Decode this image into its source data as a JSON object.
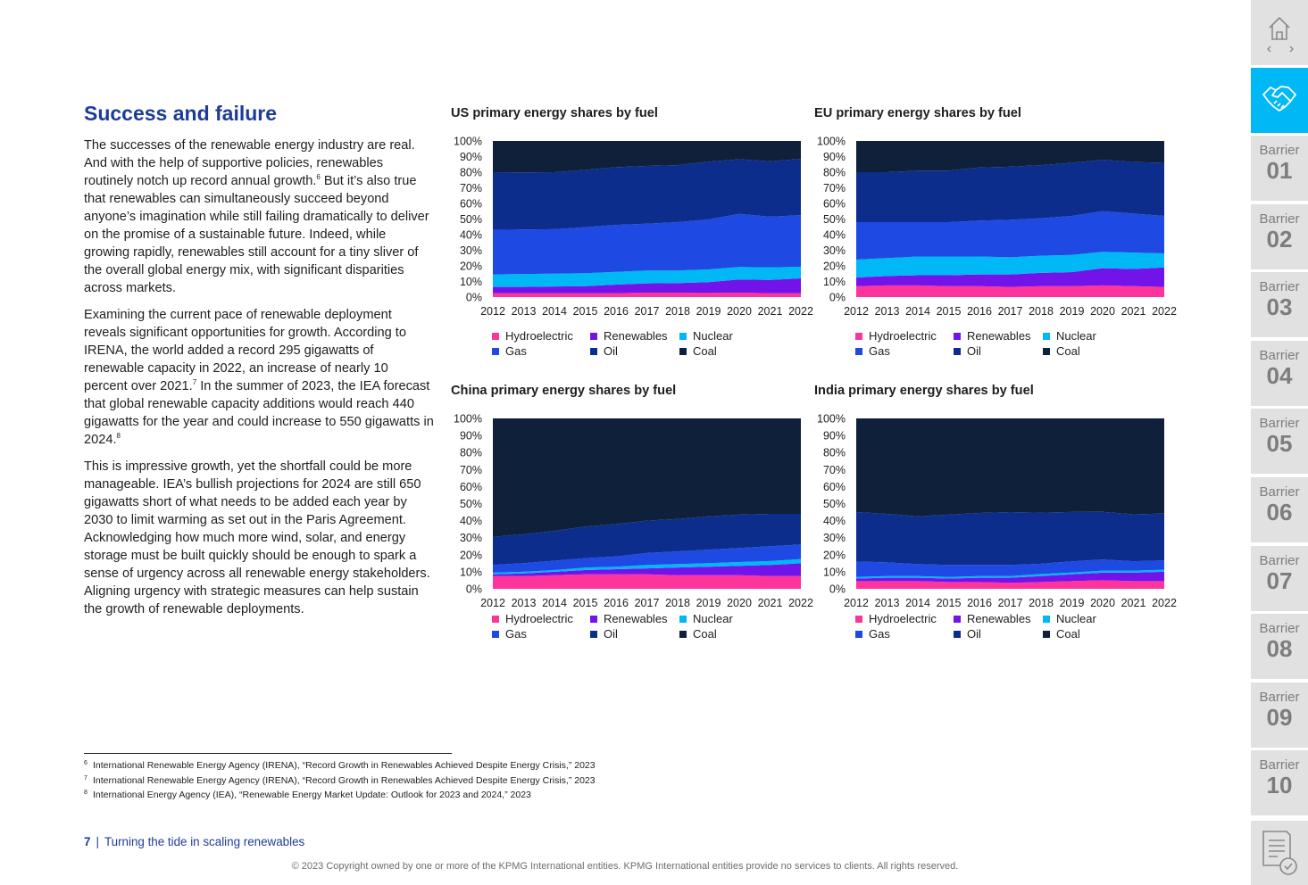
{
  "section": {
    "title": "Success and failure",
    "p1_text": "The successes of the renewable energy industry are real. And with the help of supportive policies, renewables routinely notch up record annual growth.",
    "p1_sup": "6",
    "p1_text2": " But it’s also true that renewables can simultaneously succeed beyond anyone’s imagination while still failing dramatically to deliver on the promise of a sustainable future. Indeed, while growing rapidly, renewables still account for a tiny sliver of the overall global energy mix, with significant disparities across markets.",
    "p2_text": "Examining the current pace of renewable deployment reveals significant opportunities for growth. According to IRENA, the world added a record 295 gigawatts of renewable capacity in 2022, an increase of nearly 10 percent over 2021.",
    "p2_sup1": "7",
    "p2_text2": " In the summer of 2023, the IEA forecast that global renewable capacity additions would reach 440 gigawatts for the year and could increase to 550 gigawatts in 2024.",
    "p2_sup2": "8",
    "p3_text": "This is impressive growth, yet the shortfall could be more manageable. IEA’s bullish projections for 2024 are still 650 gigawatts short of what needs to be added each year by 2030 to limit warming as set out in the Paris Agreement. Acknowledging how much more wind, solar, and energy storage must be built quickly should be enough to spark a sense of urgency across all renewable energy stakeholders. Aligning urgency with strategic measures can help sustain the growth of renewable deployments."
  },
  "colors": {
    "Hydroelectric": "#fd349c",
    "Renewables": "#7213ea",
    "Nuclear": "#00b8f5",
    "Gas": "#1e49e2",
    "Oil": "#0c2d8c",
    "Coal": "#0f213a"
  },
  "legend": [
    "Hydroelectric",
    "Renewables",
    "Nuclear",
    "Gas",
    "Oil",
    "Coal"
  ],
  "chart_data": [
    {
      "type": "area",
      "title": "US primary energy shares by fuel",
      "x": [
        2012,
        2013,
        2014,
        2015,
        2016,
        2017,
        2018,
        2019,
        2020,
        2021,
        2022
      ],
      "ylim": [
        0,
        100
      ],
      "yticks": [
        "0%",
        "10%",
        "20%",
        "30%",
        "40%",
        "50%",
        "60%",
        "70%",
        "80%",
        "90%",
        "100%"
      ],
      "stacked": true,
      "series": [
        {
          "name": "Hydroelectric",
          "values": [
            2.5,
            2.5,
            2.5,
            2.5,
            2.5,
            2.8,
            2.7,
            2.6,
            2.8,
            2.5,
            2.5
          ]
        },
        {
          "name": "Renewables",
          "values": [
            4.0,
            4.0,
            4.3,
            4.5,
            5.5,
            6.0,
            6.3,
            7.0,
            8.5,
            8.5,
            9.5
          ]
        },
        {
          "name": "Nuclear",
          "values": [
            8.0,
            8.3,
            8.2,
            8.3,
            8.2,
            8.2,
            8.0,
            8.1,
            8.0,
            8.0,
            7.5
          ]
        },
        {
          "name": "Gas",
          "values": [
            28.5,
            28.5,
            28.5,
            29.5,
            30.0,
            30.0,
            31.0,
            32.0,
            34.0,
            32.5,
            33.0
          ]
        },
        {
          "name": "Oil",
          "values": [
            37.0,
            36.5,
            36.5,
            36.7,
            37.0,
            37.0,
            36.5,
            37.0,
            35.0,
            35.5,
            36.0
          ]
        },
        {
          "name": "Coal",
          "values": [
            20.0,
            20.2,
            20.0,
            18.5,
            16.8,
            16.0,
            15.5,
            13.3,
            11.7,
            13.0,
            11.5
          ]
        }
      ]
    },
    {
      "type": "area",
      "title": "EU primary energy shares by fuel",
      "x": [
        2012,
        2013,
        2014,
        2015,
        2016,
        2017,
        2018,
        2019,
        2020,
        2021,
        2022
      ],
      "ylim": [
        0,
        100
      ],
      "yticks": [
        "0%",
        "10%",
        "20%",
        "30%",
        "40%",
        "50%",
        "60%",
        "70%",
        "80%",
        "90%",
        "100%"
      ],
      "stacked": true,
      "series": [
        {
          "name": "Hydroelectric",
          "values": [
            7.0,
            7.5,
            7.5,
            7.0,
            7.0,
            6.5,
            7.0,
            7.0,
            7.5,
            7.0,
            6.5
          ]
        },
        {
          "name": "Renewables",
          "values": [
            5.5,
            6.0,
            6.5,
            7.0,
            7.5,
            8.0,
            8.5,
            9.0,
            11.0,
            11.0,
            12.5
          ]
        },
        {
          "name": "Nuclear",
          "values": [
            11.5,
            11.5,
            12.0,
            12.0,
            11.5,
            11.0,
            11.0,
            11.0,
            10.5,
            10.5,
            9.0
          ]
        },
        {
          "name": "Gas",
          "values": [
            24.0,
            23.0,
            22.0,
            22.0,
            23.0,
            24.0,
            24.0,
            25.0,
            26.0,
            25.0,
            24.0
          ]
        },
        {
          "name": "Oil",
          "values": [
            32.0,
            32.0,
            33.0,
            33.0,
            34.0,
            34.0,
            34.0,
            34.0,
            33.0,
            33.0,
            34.0
          ]
        },
        {
          "name": "Coal",
          "values": [
            20.0,
            20.0,
            19.0,
            19.0,
            17.0,
            16.5,
            15.5,
            14.0,
            12.0,
            13.5,
            14.0
          ]
        }
      ]
    },
    {
      "type": "area",
      "title": "China primary energy shares by fuel",
      "x": [
        2012,
        2013,
        2014,
        2015,
        2016,
        2017,
        2018,
        2019,
        2020,
        2021,
        2022
      ],
      "ylim": [
        0,
        100
      ],
      "yticks": [
        "0%",
        "10%",
        "20%",
        "30%",
        "40%",
        "50%",
        "60%",
        "70%",
        "80%",
        "90%",
        "100%"
      ],
      "stacked": true,
      "series": [
        {
          "name": "Hydroelectric",
          "values": [
            7.5,
            7.5,
            8.0,
            8.5,
            8.5,
            8.5,
            8.0,
            8.0,
            8.0,
            7.5,
            7.5
          ]
        },
        {
          "name": "Renewables",
          "values": [
            1.0,
            1.5,
            2.0,
            2.5,
            3.0,
            3.5,
            4.5,
            5.0,
            5.5,
            6.5,
            7.5
          ]
        },
        {
          "name": "Nuclear",
          "values": [
            1.0,
            1.0,
            1.0,
            1.5,
            1.5,
            2.0,
            2.0,
            2.0,
            2.2,
            2.3,
            2.5
          ]
        },
        {
          "name": "Gas",
          "values": [
            4.5,
            5.0,
            5.5,
            5.5,
            6.0,
            7.0,
            7.5,
            8.0,
            8.3,
            8.7,
            8.5
          ]
        },
        {
          "name": "Oil",
          "values": [
            16.5,
            17.0,
            17.5,
            18.5,
            19.0,
            19.0,
            19.0,
            19.5,
            19.5,
            19.0,
            18.0
          ]
        },
        {
          "name": "Coal",
          "values": [
            69.5,
            68.0,
            66.0,
            63.5,
            62.0,
            60.0,
            59.0,
            57.5,
            56.5,
            56.0,
            56.0
          ]
        }
      ]
    },
    {
      "type": "area",
      "title": "India primary energy shares by fuel",
      "x": [
        2012,
        2013,
        2014,
        2015,
        2016,
        2017,
        2018,
        2019,
        2020,
        2021,
        2022
      ],
      "ylim": [
        0,
        100
      ],
      "yticks": [
        "0%",
        "10%",
        "20%",
        "30%",
        "40%",
        "50%",
        "60%",
        "70%",
        "80%",
        "90%",
        "100%"
      ],
      "stacked": true,
      "series": [
        {
          "name": "Hydroelectric",
          "values": [
            4.5,
            4.5,
            4.5,
            4.0,
            4.0,
            3.5,
            4.0,
            4.5,
            5.0,
            4.5,
            4.5
          ]
        },
        {
          "name": "Renewables",
          "values": [
            1.5,
            2.0,
            2.0,
            2.0,
            2.5,
            3.0,
            3.5,
            4.0,
            4.5,
            5.0,
            5.5
          ]
        },
        {
          "name": "Nuclear",
          "values": [
            1.0,
            1.0,
            1.0,
            1.0,
            1.0,
            1.0,
            1.2,
            1.1,
            1.2,
            1.2,
            1.2
          ]
        },
        {
          "name": "Gas",
          "values": [
            9.0,
            8.0,
            7.0,
            7.0,
            6.5,
            6.5,
            6.0,
            6.5,
            6.5,
            5.5,
            5.5
          ]
        },
        {
          "name": "Oil",
          "values": [
            29.0,
            28.5,
            28.0,
            29.5,
            30.5,
            31.0,
            30.0,
            29.0,
            28.0,
            27.5,
            27.5
          ]
        },
        {
          "name": "Coal",
          "values": [
            55.0,
            56.0,
            57.5,
            56.5,
            55.5,
            55.0,
            55.3,
            54.9,
            54.8,
            56.3,
            55.8
          ]
        }
      ]
    }
  ],
  "footnotes": [
    {
      "num": "6",
      "text": "International Renewable Energy Agency (IRENA), “Record Growth in Renewables Achieved Despite Energy Crisis,” 2023"
    },
    {
      "num": "7",
      "text": "International Renewable Energy Agency (IRENA), “Record Growth in Renewables Achieved Despite Energy Crisis,” 2023"
    },
    {
      "num": "8",
      "text": "International Energy Agency (IEA), “Renewable Energy Market Update: Outlook for 2023 and 2024,” 2023"
    }
  ],
  "footer": {
    "page_number": "7",
    "separator": "|",
    "document_title": "Turning the tide in scaling renewables",
    "copyright": "© 2023 Copyright owned by one or more of the KPMG International entities. KPMG International entities provide no services to clients. All rights reserved."
  },
  "sidebar": {
    "home_icon": "home-icon",
    "active_icon": "handshake-icon",
    "barrier_label": "Barrier",
    "barriers": [
      "01",
      "02",
      "03",
      "04",
      "05",
      "06",
      "07",
      "08",
      "09",
      "10"
    ],
    "bottom_icon": "checklist-icon"
  }
}
